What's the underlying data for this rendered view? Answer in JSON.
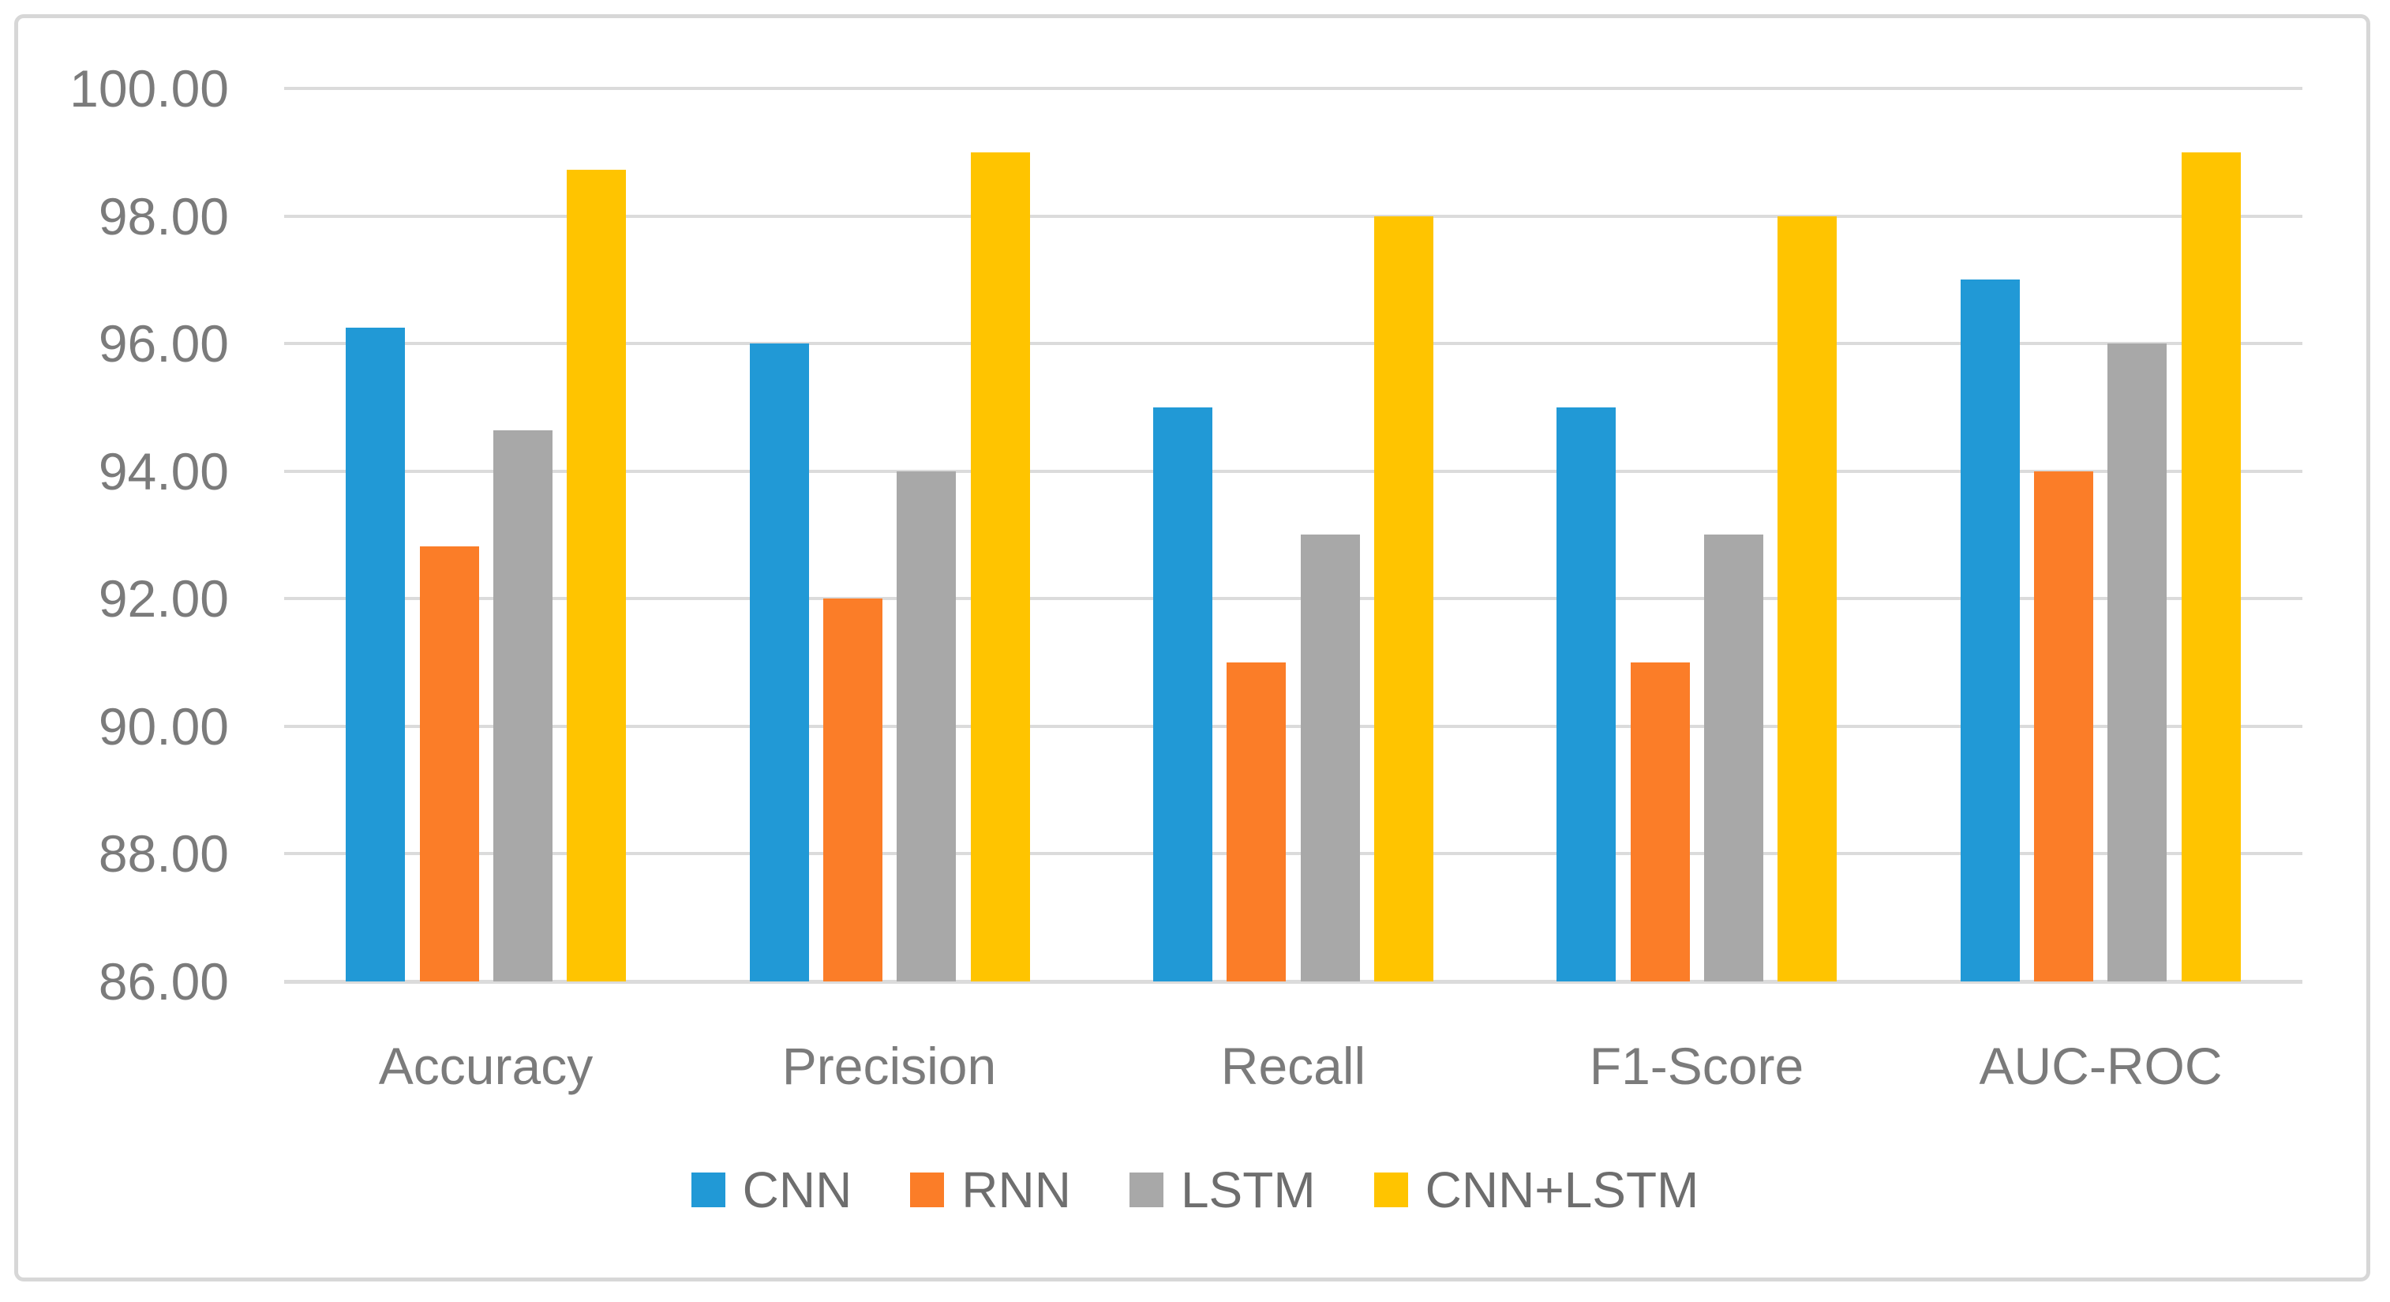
{
  "chart": {
    "background_color": "#FFFFFF",
    "border_color": "#D7D7D7",
    "gridline_color": "#DBDBDB",
    "axis_text_color": "#7B7B7B",
    "legend_text_color": "#6E6E6E"
  },
  "chart_data": {
    "type": "bar",
    "title": "",
    "categories": [
      "Accuracy",
      "Precision",
      "Recall",
      "F1-Score",
      "AUC-ROC"
    ],
    "series": [
      {
        "name": "CNN",
        "color": "#2199D6",
        "values": [
          96.25,
          96.0,
          95.0,
          95.0,
          97.0
        ]
      },
      {
        "name": "RNN",
        "color": "#FB7D28",
        "values": [
          92.82,
          92.0,
          91.0,
          91.0,
          94.0
        ]
      },
      {
        "name": "LSTM",
        "color": "#A8A8A8",
        "values": [
          94.64,
          94.0,
          93.0,
          93.0,
          96.0
        ]
      },
      {
        "name": "CNN+LSTM",
        "color": "#FFC400",
        "values": [
          98.72,
          99.0,
          98.0,
          98.0,
          99.0
        ]
      }
    ],
    "ylim": [
      86,
      100
    ],
    "y_tick_step": 2,
    "y_ticks": [
      {
        "value": 100,
        "label": "100.00"
      },
      {
        "value": 98,
        "label": "98.00"
      },
      {
        "value": 96,
        "label": "96.00"
      },
      {
        "value": 94,
        "label": "94.00"
      },
      {
        "value": 92,
        "label": "92.00"
      },
      {
        "value": 90,
        "label": "90.00"
      },
      {
        "value": 88,
        "label": "88.00"
      },
      {
        "value": 86,
        "label": "86.00"
      }
    ],
    "grid": "horizontal",
    "legend_position": "bottom",
    "xlabel": "",
    "ylabel": ""
  }
}
